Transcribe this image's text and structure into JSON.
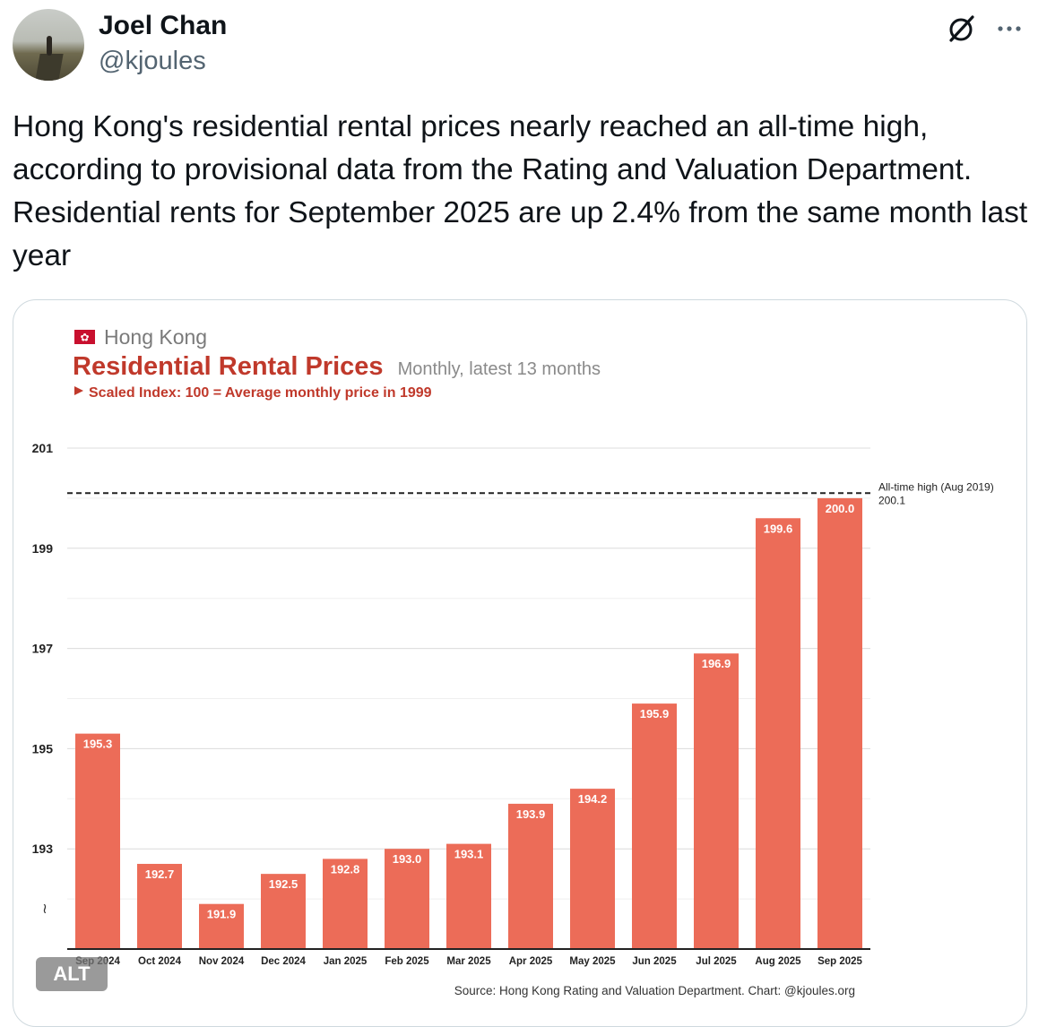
{
  "author": {
    "name": "Joel Chan",
    "handle": "@kjoules"
  },
  "tweet": {
    "text": "Hong Kong's residential rental prices nearly reached an all-time high, according to provisional data from the Rating and Valuation Department. Residential rents for September 2025 are up 2.4% from the same month last year"
  },
  "icons": {
    "grok": "grok-icon",
    "more": "more-dots-icon",
    "flag": "hong-kong-flag-icon"
  },
  "media": {
    "alt_badge": "ALT"
  },
  "chart_data": {
    "type": "bar",
    "region": "Hong Kong",
    "title": "Residential Rental Prices",
    "subtitle": "Monthly, latest 13 months",
    "note": "Scaled Index: 100 = Average monthly price in 1999",
    "categories": [
      "Sep 2024",
      "Oct 2024",
      "Nov 2024",
      "Dec 2024",
      "Jan 2025",
      "Feb 2025",
      "Mar 2025",
      "Apr 2025",
      "May 2025",
      "Jun 2025",
      "Jul 2025",
      "Aug 2025",
      "Sep 2025"
    ],
    "values": [
      195.3,
      192.7,
      191.9,
      192.5,
      192.8,
      193.0,
      193.1,
      193.9,
      194.2,
      195.9,
      196.9,
      199.6,
      200.0
    ],
    "value_labels": [
      "195.3",
      "192.7",
      "191.9",
      "192.5",
      "192.8",
      "193.0",
      "193.1",
      "193.9",
      "194.2",
      "195.9",
      "196.9",
      "199.6",
      "200.0"
    ],
    "y_ticks": [
      "193",
      "195",
      "197",
      "199",
      "201"
    ],
    "y_tick_values": [
      193,
      195,
      197,
      199,
      201
    ],
    "axis_break_symbol": "≀",
    "ylim": [
      191,
      201
    ],
    "reference_line": {
      "label": "All-time high (Aug 2019)",
      "value_text": "200.1",
      "value": 200.1
    },
    "source": "Source: Hong Kong Rating and Valuation Department. Chart: @kjoules.org",
    "colors": {
      "bar": "#ec6c58",
      "title": "#c0392b",
      "flag": "#c8102e"
    }
  }
}
